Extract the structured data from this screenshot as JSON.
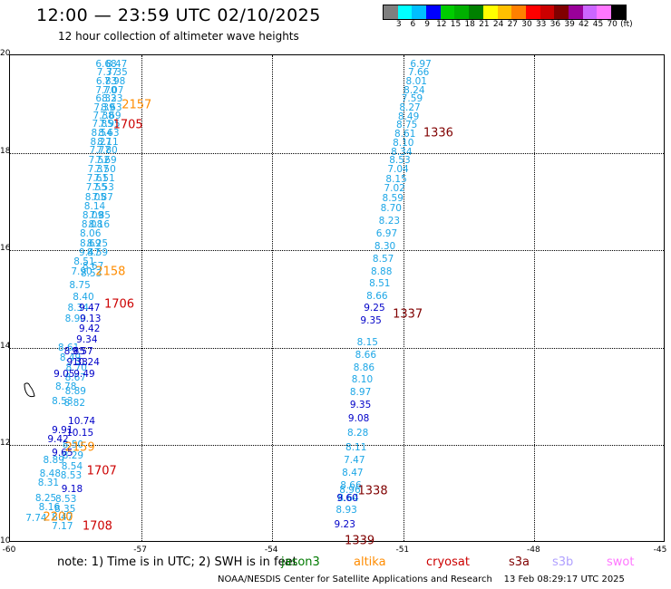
{
  "header": {
    "title": "12:00 — 23:59 UTC 02/10/2025",
    "subtitle": "12 hour collection of altimeter wave heights"
  },
  "legend": {
    "colors": [
      "#7f7f7f",
      "#00ffff",
      "#00bfff",
      "#0000ff",
      "#00cc00",
      "#00b000",
      "#008000",
      "#ffff00",
      "#ffc000",
      "#ff8000",
      "#ff0000",
      "#cc0000",
      "#800000",
      "#990099",
      "#cc66ff",
      "#ff77ff",
      "#000000"
    ],
    "labels": [
      "3",
      "6",
      "9",
      "12",
      "15",
      "18",
      "21",
      "24",
      "27",
      "30",
      "33",
      "36",
      "39",
      "42",
      "45",
      "70",
      "(ft)"
    ]
  },
  "axes": {
    "y_labels": [
      "20",
      "18",
      "16",
      "14",
      "12",
      "10"
    ],
    "x_labels": [
      "-60",
      "-57",
      "-54",
      "-51",
      "-48",
      "-45"
    ]
  },
  "chart_data": {
    "type": "scatter",
    "xlim": [
      -60,
      -45
    ],
    "ylim": [
      10,
      20
    ],
    "units": "ft",
    "tracks": [
      {
        "satellite": "jason3",
        "points": [
          {
            "x": -57.8,
            "y": 19.82,
            "v": "6.68"
          },
          {
            "x": -57.56,
            "y": 19.82,
            "v": "8.47"
          },
          {
            "x": -57.77,
            "y": 19.64,
            "v": "7.37"
          },
          {
            "x": -57.55,
            "y": 19.64,
            "v": "7.35"
          },
          {
            "x": -57.79,
            "y": 19.46,
            "v": "6.83"
          },
          {
            "x": -57.6,
            "y": 19.46,
            "v": "7.98"
          },
          {
            "x": -57.8,
            "y": 19.28,
            "v": "7.70"
          },
          {
            "x": -57.64,
            "y": 19.28,
            "v": "7.07"
          },
          {
            "x": -57.8,
            "y": 19.1,
            "v": "6.33"
          },
          {
            "x": -57.66,
            "y": 19.1,
            "v": "8.23"
          },
          {
            "x": -57.84,
            "y": 18.93,
            "v": "7.39"
          },
          {
            "x": -57.68,
            "y": 18.93,
            "v": "8.63"
          },
          {
            "x": -57.86,
            "y": 18.76,
            "v": "7.38"
          },
          {
            "x": -57.7,
            "y": 18.76,
            "v": "7.69"
          },
          {
            "x": -57.88,
            "y": 18.58,
            "v": "7.85"
          },
          {
            "x": -57.72,
            "y": 18.58,
            "v": "7.95"
          },
          {
            "x": -57.9,
            "y": 18.4,
            "v": "8.54"
          },
          {
            "x": -57.74,
            "y": 18.4,
            "v": "8.63"
          },
          {
            "x": -57.92,
            "y": 18.22,
            "v": "8.27"
          },
          {
            "x": -57.76,
            "y": 18.22,
            "v": "8.11"
          },
          {
            "x": -57.94,
            "y": 18.04,
            "v": "7.77"
          },
          {
            "x": -57.78,
            "y": 18.04,
            "v": "7.80"
          },
          {
            "x": -57.96,
            "y": 17.85,
            "v": "7.52"
          },
          {
            "x": -57.8,
            "y": 17.85,
            "v": "7.69"
          },
          {
            "x": -57.98,
            "y": 17.66,
            "v": "7.37"
          },
          {
            "x": -57.82,
            "y": 17.66,
            "v": "7.50"
          },
          {
            "x": -58.0,
            "y": 17.47,
            "v": "7.61"
          },
          {
            "x": -57.84,
            "y": 17.47,
            "v": "7.51"
          },
          {
            "x": -58.02,
            "y": 17.28,
            "v": "7.55"
          },
          {
            "x": -57.86,
            "y": 17.28,
            "v": "7.53"
          },
          {
            "x": -58.04,
            "y": 17.09,
            "v": "8.05"
          },
          {
            "x": -57.88,
            "y": 17.09,
            "v": "7.87"
          },
          {
            "x": -58.06,
            "y": 16.9,
            "v": "8.14"
          },
          {
            "x": -58.1,
            "y": 16.71,
            "v": "8.09"
          },
          {
            "x": -57.94,
            "y": 16.71,
            "v": "7.85"
          },
          {
            "x": -58.12,
            "y": 16.52,
            "v": "8.08"
          },
          {
            "x": -57.96,
            "y": 16.52,
            "v": "8.16"
          },
          {
            "x": -58.16,
            "y": 16.33,
            "v": "8.06"
          },
          {
            "x": -58.0,
            "y": 16.14,
            "v": "8.25"
          },
          {
            "x": -58.16,
            "y": 16.14,
            "v": "8.69"
          },
          {
            "x": -58.0,
            "y": 15.95,
            "v": "8.59"
          },
          {
            "x": -58.3,
            "y": 15.76,
            "v": "8.51"
          },
          {
            "x": -58.1,
            "y": 15.66,
            "v": "8.67"
          },
          {
            "x": -58.36,
            "y": 15.56,
            "v": "7.90"
          },
          {
            "x": -58.14,
            "y": 15.52,
            "v": "8.53"
          },
          {
            "x": -58.4,
            "y": 15.28,
            "v": "8.75"
          },
          {
            "x": -58.32,
            "y": 15.04,
            "v": "8.40"
          },
          {
            "x": -58.44,
            "y": 14.82,
            "v": "8.34"
          },
          {
            "x": -58.5,
            "y": 14.6,
            "v": "8.90"
          },
          {
            "x": -58.66,
            "y": 14.0,
            "v": "8.61"
          },
          {
            "x": -58.62,
            "y": 13.8,
            "v": "8.49"
          },
          {
            "x": -58.48,
            "y": 13.58,
            "v": "8.70"
          },
          {
            "x": -58.5,
            "y": 13.38,
            "v": "8.67"
          },
          {
            "x": -58.72,
            "y": 13.2,
            "v": "8.78"
          },
          {
            "x": -58.5,
            "y": 13.1,
            "v": "8.89"
          },
          {
            "x": -58.8,
            "y": 12.9,
            "v": "8.53"
          },
          {
            "x": -58.52,
            "y": 12.86,
            "v": "8.82"
          },
          {
            "x": -58.56,
            "y": 12.0,
            "v": "8.50"
          },
          {
            "x": -59.0,
            "y": 11.7,
            "v": "8.89"
          },
          {
            "x": -58.56,
            "y": 11.78,
            "v": "8.29"
          },
          {
            "x": -58.58,
            "y": 11.56,
            "v": "8.54"
          },
          {
            "x": -59.08,
            "y": 11.42,
            "v": "8.48"
          },
          {
            "x": -58.6,
            "y": 11.38,
            "v": "8.53"
          },
          {
            "x": -59.12,
            "y": 11.22,
            "v": "8.31"
          },
          {
            "x": -59.18,
            "y": 10.92,
            "v": "8.25"
          },
          {
            "x": -58.72,
            "y": 10.9,
            "v": "8.53"
          },
          {
            "x": -59.1,
            "y": 10.72,
            "v": "8.16"
          },
          {
            "x": -58.74,
            "y": 10.68,
            "v": "8.35"
          },
          {
            "x": -59.4,
            "y": 10.5,
            "v": "7.74"
          },
          {
            "x": -58.8,
            "y": 10.52,
            "v": "8.47"
          },
          {
            "x": -58.8,
            "y": 10.33,
            "v": "7.17"
          },
          {
            "x": -58.18,
            "y": 15.95,
            "v": "9.47"
          }
        ]
      },
      {
        "satellite": "jason3-dark",
        "points": [
          {
            "x": -58.18,
            "y": 14.82,
            "v": "9.47"
          },
          {
            "x": -58.16,
            "y": 14.6,
            "v": "9.13"
          },
          {
            "x": -58.18,
            "y": 14.38,
            "v": "9.42"
          },
          {
            "x": -58.24,
            "y": 14.16,
            "v": "9.34"
          },
          {
            "x": -58.34,
            "y": 13.92,
            "v": "9.57"
          },
          {
            "x": -58.52,
            "y": 13.92,
            "v": "8.85"
          },
          {
            "x": -58.46,
            "y": 13.7,
            "v": "9.33"
          },
          {
            "x": -58.26,
            "y": 13.7,
            "v": "10.24"
          },
          {
            "x": -58.3,
            "y": 13.46,
            "v": "9.49"
          },
          {
            "x": -58.76,
            "y": 13.46,
            "v": "9.05"
          },
          {
            "x": -58.36,
            "y": 12.5,
            "v": "10.74"
          },
          {
            "x": -58.8,
            "y": 12.3,
            "v": "9.91"
          },
          {
            "x": -58.4,
            "y": 12.24,
            "v": "10.15"
          },
          {
            "x": -58.9,
            "y": 12.12,
            "v": "9.42"
          },
          {
            "x": -58.8,
            "y": 11.84,
            "v": "9.65"
          },
          {
            "x": -58.58,
            "y": 11.1,
            "v": "9.18"
          }
        ]
      },
      {
        "satellite": "altika",
        "time": "2157",
        "points": []
      },
      {
        "satellite": "s3a-right",
        "points": [
          {
            "x": -50.6,
            "y": 19.82,
            "v": "6.97"
          },
          {
            "x": -50.65,
            "y": 19.64,
            "v": "7.66"
          },
          {
            "x": -50.7,
            "y": 19.46,
            "v": "8.01"
          },
          {
            "x": -50.75,
            "y": 19.28,
            "v": "8.24"
          },
          {
            "x": -50.8,
            "y": 19.1,
            "v": "7.59"
          },
          {
            "x": -50.85,
            "y": 18.92,
            "v": "8.27"
          },
          {
            "x": -50.88,
            "y": 18.74,
            "v": "8.49"
          },
          {
            "x": -50.92,
            "y": 18.56,
            "v": "8.75"
          },
          {
            "x": -50.96,
            "y": 18.38,
            "v": "8.61"
          },
          {
            "x": -51.0,
            "y": 18.2,
            "v": "8.10"
          },
          {
            "x": -51.04,
            "y": 18.02,
            "v": "8.34"
          },
          {
            "x": -51.08,
            "y": 17.84,
            "v": "8.53"
          },
          {
            "x": -51.12,
            "y": 17.66,
            "v": "7.04"
          },
          {
            "x": -51.16,
            "y": 17.46,
            "v": "8.15"
          },
          {
            "x": -51.2,
            "y": 17.26,
            "v": "7.02"
          },
          {
            "x": -51.24,
            "y": 17.06,
            "v": "8.59"
          },
          {
            "x": -51.28,
            "y": 16.86,
            "v": "8.70"
          },
          {
            "x": -51.32,
            "y": 16.6,
            "v": "8.23"
          },
          {
            "x": -51.38,
            "y": 16.34,
            "v": "6.97"
          },
          {
            "x": -51.42,
            "y": 16.08,
            "v": "8.30"
          },
          {
            "x": -51.46,
            "y": 15.82,
            "v": "8.57"
          },
          {
            "x": -51.5,
            "y": 15.56,
            "v": "8.88"
          },
          {
            "x": -51.54,
            "y": 15.32,
            "v": "8.51"
          },
          {
            "x": -51.6,
            "y": 15.06,
            "v": "8.66"
          },
          {
            "x": -51.82,
            "y": 14.1,
            "v": "8.15"
          },
          {
            "x": -51.86,
            "y": 13.84,
            "v": "8.66"
          },
          {
            "x": -51.9,
            "y": 13.58,
            "v": "8.86"
          },
          {
            "x": -51.94,
            "y": 13.34,
            "v": "8.10"
          },
          {
            "x": -51.98,
            "y": 13.08,
            "v": "8.97"
          },
          {
            "x": -52.04,
            "y": 12.24,
            "v": "8.28"
          },
          {
            "x": -52.08,
            "y": 11.96,
            "v": "8.11"
          },
          {
            "x": -52.12,
            "y": 11.7,
            "v": "7.47"
          },
          {
            "x": -52.16,
            "y": 11.44,
            "v": "8.47"
          },
          {
            "x": -52.2,
            "y": 11.18,
            "v": "8.66"
          },
          {
            "x": -52.22,
            "y": 11.08,
            "v": "8.96"
          },
          {
            "x": -52.26,
            "y": 10.92,
            "v": "8.64"
          },
          {
            "x": -52.3,
            "y": 10.66,
            "v": "8.93"
          }
        ]
      },
      {
        "satellite": "s3a-right-dark",
        "points": [
          {
            "x": -51.66,
            "y": 14.82,
            "v": "9.25"
          },
          {
            "x": -51.74,
            "y": 14.56,
            "v": "9.35"
          },
          {
            "x": -51.98,
            "y": 12.82,
            "v": "9.35"
          },
          {
            "x": -52.02,
            "y": 12.54,
            "v": "9.08"
          },
          {
            "x": -52.28,
            "y": 10.92,
            "v": "9.60"
          },
          {
            "x": -52.34,
            "y": 10.38,
            "v": "9.23"
          }
        ]
      }
    ],
    "time_labels": [
      {
        "x": -57.1,
        "y": 18.98,
        "t": "2157",
        "satellite": "altika"
      },
      {
        "x": -57.3,
        "y": 18.56,
        "t": "1705",
        "satellite": "cryosat"
      },
      {
        "x": -50.2,
        "y": 18.4,
        "t": "1336",
        "satellite": "s3a"
      },
      {
        "x": -57.7,
        "y": 15.56,
        "t": "2158",
        "satellite": "altika"
      },
      {
        "x": -57.5,
        "y": 14.88,
        "t": "1706",
        "satellite": "cryosat"
      },
      {
        "x": -50.9,
        "y": 14.68,
        "t": "1337",
        "satellite": "s3a"
      },
      {
        "x": -58.4,
        "y": 11.96,
        "t": "2159",
        "satellite": "altika"
      },
      {
        "x": -57.9,
        "y": 11.46,
        "t": "1707",
        "satellite": "cryosat"
      },
      {
        "x": -51.7,
        "y": 11.06,
        "t": "1338",
        "satellite": "s3a"
      },
      {
        "x": -58.9,
        "y": 10.52,
        "t": "2200",
        "satellite": "altika"
      },
      {
        "x": -58.0,
        "y": 10.33,
        "t": "1708",
        "satellite": "cryosat"
      },
      {
        "x": -52.0,
        "y": 10.03,
        "t": "1339",
        "satellite": "s3a"
      }
    ]
  },
  "footer": {
    "note": "note: 1) Time is in UTC; 2) SWH is in feet",
    "satellites": [
      {
        "name": "jason3",
        "color": "#007a00"
      },
      {
        "name": "altika",
        "color": "#ff8c00"
      },
      {
        "name": "cryosat",
        "color": "#cc0000"
      },
      {
        "name": "s3a",
        "color": "#800000"
      },
      {
        "name": "s3b",
        "color": "#b0a0ff"
      },
      {
        "name": "swot",
        "color": "#ff77ff"
      }
    ],
    "credit": "NOAA/NESDIS Center for Satellite Applications and Research",
    "timestamp": "13 Feb 08:29:17 UTC 2025"
  },
  "styles": {
    "light_blue": "#1ca6e6",
    "dark_blue": "#0000c8",
    "altika": "#ff8c00",
    "cryosat": "#cc0000",
    "s3a": "#800000"
  }
}
